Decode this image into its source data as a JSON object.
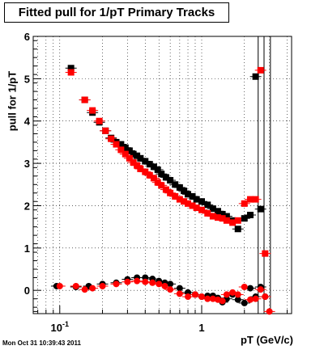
{
  "chart_data": {
    "type": "scatter",
    "title": "Fitted pull for 1/pT  Primary Tracks",
    "xlabel": "pT (GeV/c)",
    "ylabel": "pull for 1/pT",
    "x_scale": "log",
    "xlim": [
      0.065,
      4.3
    ],
    "ylim": [
      -0.55,
      6
    ],
    "grid": true,
    "x_tick_labels": [
      {
        "value": 0.1,
        "label": "10^-1"
      },
      {
        "value": 1,
        "label": "1"
      }
    ],
    "y_ticks": [
      0,
      1,
      2,
      3,
      4,
      5,
      6
    ],
    "series": [
      {
        "color": "#000000",
        "x": [
          0.12,
          0.15,
          0.17,
          0.19,
          0.21,
          0.23,
          0.25,
          0.27,
          0.29,
          0.31,
          0.33,
          0.35,
          0.37,
          0.4,
          0.43,
          0.46,
          0.49,
          0.52,
          0.56,
          0.6,
          0.65,
          0.7,
          0.75,
          0.8,
          0.86,
          0.92,
          1.0,
          1.1,
          1.2,
          1.3,
          1.4,
          1.5,
          1.65,
          1.8,
          2.0,
          2.2,
          2.4,
          2.6
        ],
        "y": [
          5.25,
          4.5,
          4.2,
          3.97,
          3.77,
          3.6,
          3.5,
          3.45,
          3.37,
          3.3,
          3.22,
          3.18,
          3.12,
          3.05,
          2.98,
          2.92,
          2.85,
          2.75,
          2.67,
          2.6,
          2.5,
          2.43,
          2.35,
          2.27,
          2.22,
          2.15,
          2.1,
          2.02,
          1.93,
          1.87,
          1.8,
          1.75,
          1.65,
          1.45,
          1.7,
          1.78,
          5.05,
          1.92
        ],
        "x2": [
          0.095,
          0.13,
          0.16,
          0.2,
          0.25,
          0.3,
          0.35,
          0.4,
          0.45,
          0.5,
          0.55,
          0.6,
          0.7,
          0.8,
          0.9,
          1.0,
          1.1,
          1.2,
          1.3,
          1.4,
          1.5,
          1.65,
          1.8,
          2.0,
          2.2,
          2.4,
          2.6,
          2.8
        ],
        "y2": [
          0.1,
          0.08,
          0.1,
          0.15,
          0.18,
          0.26,
          0.3,
          0.3,
          0.27,
          0.22,
          0.18,
          0.15,
          0.05,
          -0.05,
          -0.1,
          -0.15,
          -0.13,
          -0.13,
          -0.18,
          -0.28,
          -0.2,
          -0.1,
          -0.22,
          -0.3,
          0.05,
          -0.15,
          0.08,
          -0.15
        ]
      },
      {
        "color": "#ff0000",
        "x": [
          0.12,
          0.15,
          0.17,
          0.19,
          0.21,
          0.23,
          0.25,
          0.27,
          0.29,
          0.31,
          0.33,
          0.35,
          0.37,
          0.4,
          0.43,
          0.46,
          0.49,
          0.52,
          0.56,
          0.6,
          0.65,
          0.7,
          0.75,
          0.8,
          0.86,
          0.92,
          1.0,
          1.1,
          1.2,
          1.3,
          1.4,
          1.5,
          1.65,
          1.8,
          2.0,
          2.2,
          2.4,
          2.6,
          2.8
        ],
        "y": [
          5.15,
          4.5,
          4.25,
          4.0,
          3.77,
          3.58,
          3.45,
          3.32,
          3.22,
          3.12,
          3.02,
          2.95,
          2.87,
          2.8,
          2.72,
          2.65,
          2.55,
          2.48,
          2.38,
          2.3,
          2.22,
          2.15,
          2.1,
          2.05,
          2.0,
          1.95,
          1.9,
          1.82,
          1.75,
          1.72,
          1.7,
          1.65,
          1.6,
          1.65,
          2.05,
          2.15,
          2.15,
          5.2,
          0.87
        ],
        "x2": [
          0.1,
          0.13,
          0.15,
          0.17,
          0.2,
          0.25,
          0.3,
          0.35,
          0.4,
          0.45,
          0.5,
          0.55,
          0.6,
          0.7,
          0.8,
          0.9,
          1.0,
          1.1,
          1.2,
          1.3,
          1.4,
          1.5,
          1.65,
          1.8,
          2.0,
          2.2,
          2.4,
          2.6,
          2.8,
          3.0
        ],
        "y2": [
          0.1,
          0.1,
          0.02,
          0.05,
          0.1,
          0.15,
          0.2,
          0.22,
          0.2,
          0.18,
          0.15,
          0.1,
          0.02,
          -0.08,
          -0.15,
          -0.1,
          -0.15,
          -0.2,
          -0.2,
          -0.22,
          -0.25,
          -0.1,
          -0.05,
          -0.1,
          0.08,
          -0.22,
          -0.2,
          0.02,
          -0.15,
          -0.5
        ]
      }
    ]
  },
  "timestamp": "Mon Oct 31 10:39:43 2011"
}
